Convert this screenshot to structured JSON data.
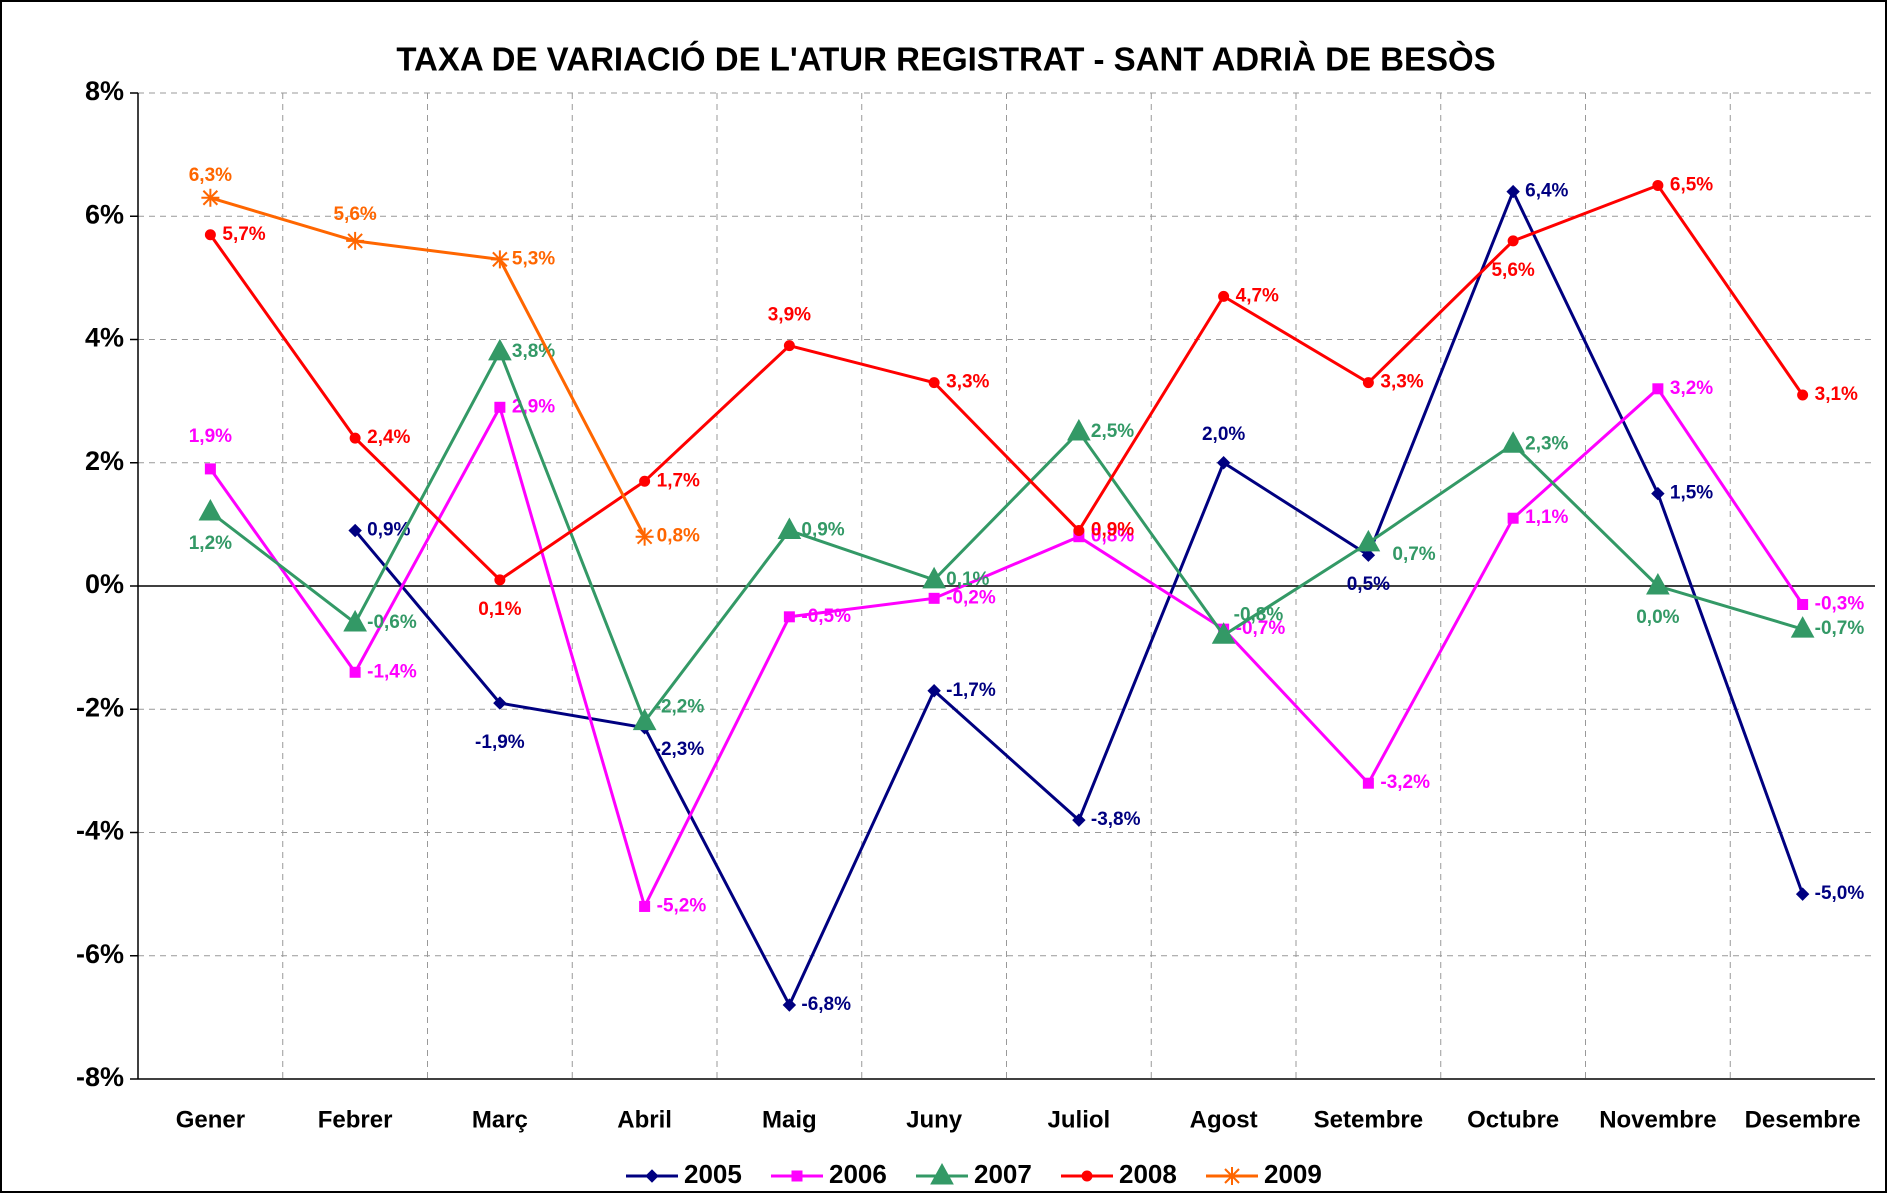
{
  "chart_data": {
    "type": "line",
    "title": "TAXA DE VARIACIÓ DE L'ATUR REGISTRAT - SANT ADRIÀ DE BESÒS",
    "categories": [
      "Gener",
      "Febrer",
      "Març",
      "Abril",
      "Maig",
      "Juny",
      "Juliol",
      "Agost",
      "Setembre",
      "Octubre",
      "Novembre",
      "Desembre"
    ],
    "ylim": [
      -8,
      8
    ],
    "yticks": [
      {
        "value": -8,
        "label": "-8%"
      },
      {
        "value": -6,
        "label": "-6%"
      },
      {
        "value": -4,
        "label": "-4%"
      },
      {
        "value": -2,
        "label": "-2%"
      },
      {
        "value": 0,
        "label": "0%"
      },
      {
        "value": 2,
        "label": "2%"
      },
      {
        "value": 4,
        "label": "4%"
      },
      {
        "value": 6,
        "label": "6%"
      },
      {
        "value": 8,
        "label": "8%"
      }
    ],
    "grid": true,
    "legend": "bottom",
    "series": [
      {
        "name": "2005",
        "color": "#000080",
        "marker": "diamond",
        "values": [
          null,
          0.9,
          -1.9,
          -2.3,
          -6.8,
          -1.7,
          -3.8,
          2.0,
          0.5,
          6.4,
          1.5,
          -5.0
        ],
        "value_labels": [
          null,
          "0,9%",
          "-1,9%",
          "-2,3%",
          "-6,8%",
          "-1,7%",
          "-3,8%",
          "2,0%",
          "0,5%",
          "6,4%",
          "1,5%",
          "-5,0%"
        ]
      },
      {
        "name": "2006",
        "color": "#FF00FF",
        "marker": "square",
        "values": [
          1.9,
          -1.4,
          2.9,
          -5.2,
          -0.5,
          -0.2,
          0.8,
          -0.7,
          -3.2,
          1.1,
          3.2,
          -0.3
        ],
        "value_labels": [
          "1,9%",
          "-1,4%",
          "2,9%",
          "-5,2%",
          "-0,5%",
          "-0,2%",
          "0,8%",
          "-0,7%",
          "-3,2%",
          "1,1%",
          "3,2%",
          "-0,3%"
        ]
      },
      {
        "name": "2007",
        "color": "#339966",
        "marker": "triangle",
        "values": [
          1.2,
          -0.6,
          3.8,
          -2.2,
          0.9,
          0.1,
          2.5,
          -0.8,
          0.7,
          2.3,
          0.0,
          -0.7
        ],
        "value_labels": [
          "1,2%",
          "-0,6%",
          "3,8%",
          "-2,2%",
          "0,9%",
          "0,1%",
          "2,5%",
          "-0,8%",
          "0,7%",
          "2,3%",
          "0,0%",
          "-0,7%"
        ]
      },
      {
        "name": "2008",
        "color": "#FF0000",
        "marker": "circle",
        "values": [
          5.7,
          2.4,
          0.1,
          1.7,
          3.9,
          3.3,
          0.9,
          4.7,
          3.3,
          5.6,
          6.5,
          3.1
        ],
        "value_labels": [
          "5,7%",
          "2,4%",
          "0,1%",
          "1,7%",
          "3,9%",
          "3,3%",
          "0,9%",
          "4,7%",
          "3,3%",
          "5,6%",
          "6,5%",
          "3,1%"
        ]
      },
      {
        "name": "2009",
        "color": "#FF6600",
        "marker": "star",
        "values": [
          6.3,
          5.6,
          5.3,
          0.8,
          null,
          null,
          null,
          null,
          null,
          null,
          null,
          null
        ],
        "value_labels": [
          "6,3%",
          "5,6%",
          "5,3%",
          "0,8%",
          null,
          null,
          null,
          null,
          null,
          null,
          null,
          null
        ]
      }
    ]
  }
}
